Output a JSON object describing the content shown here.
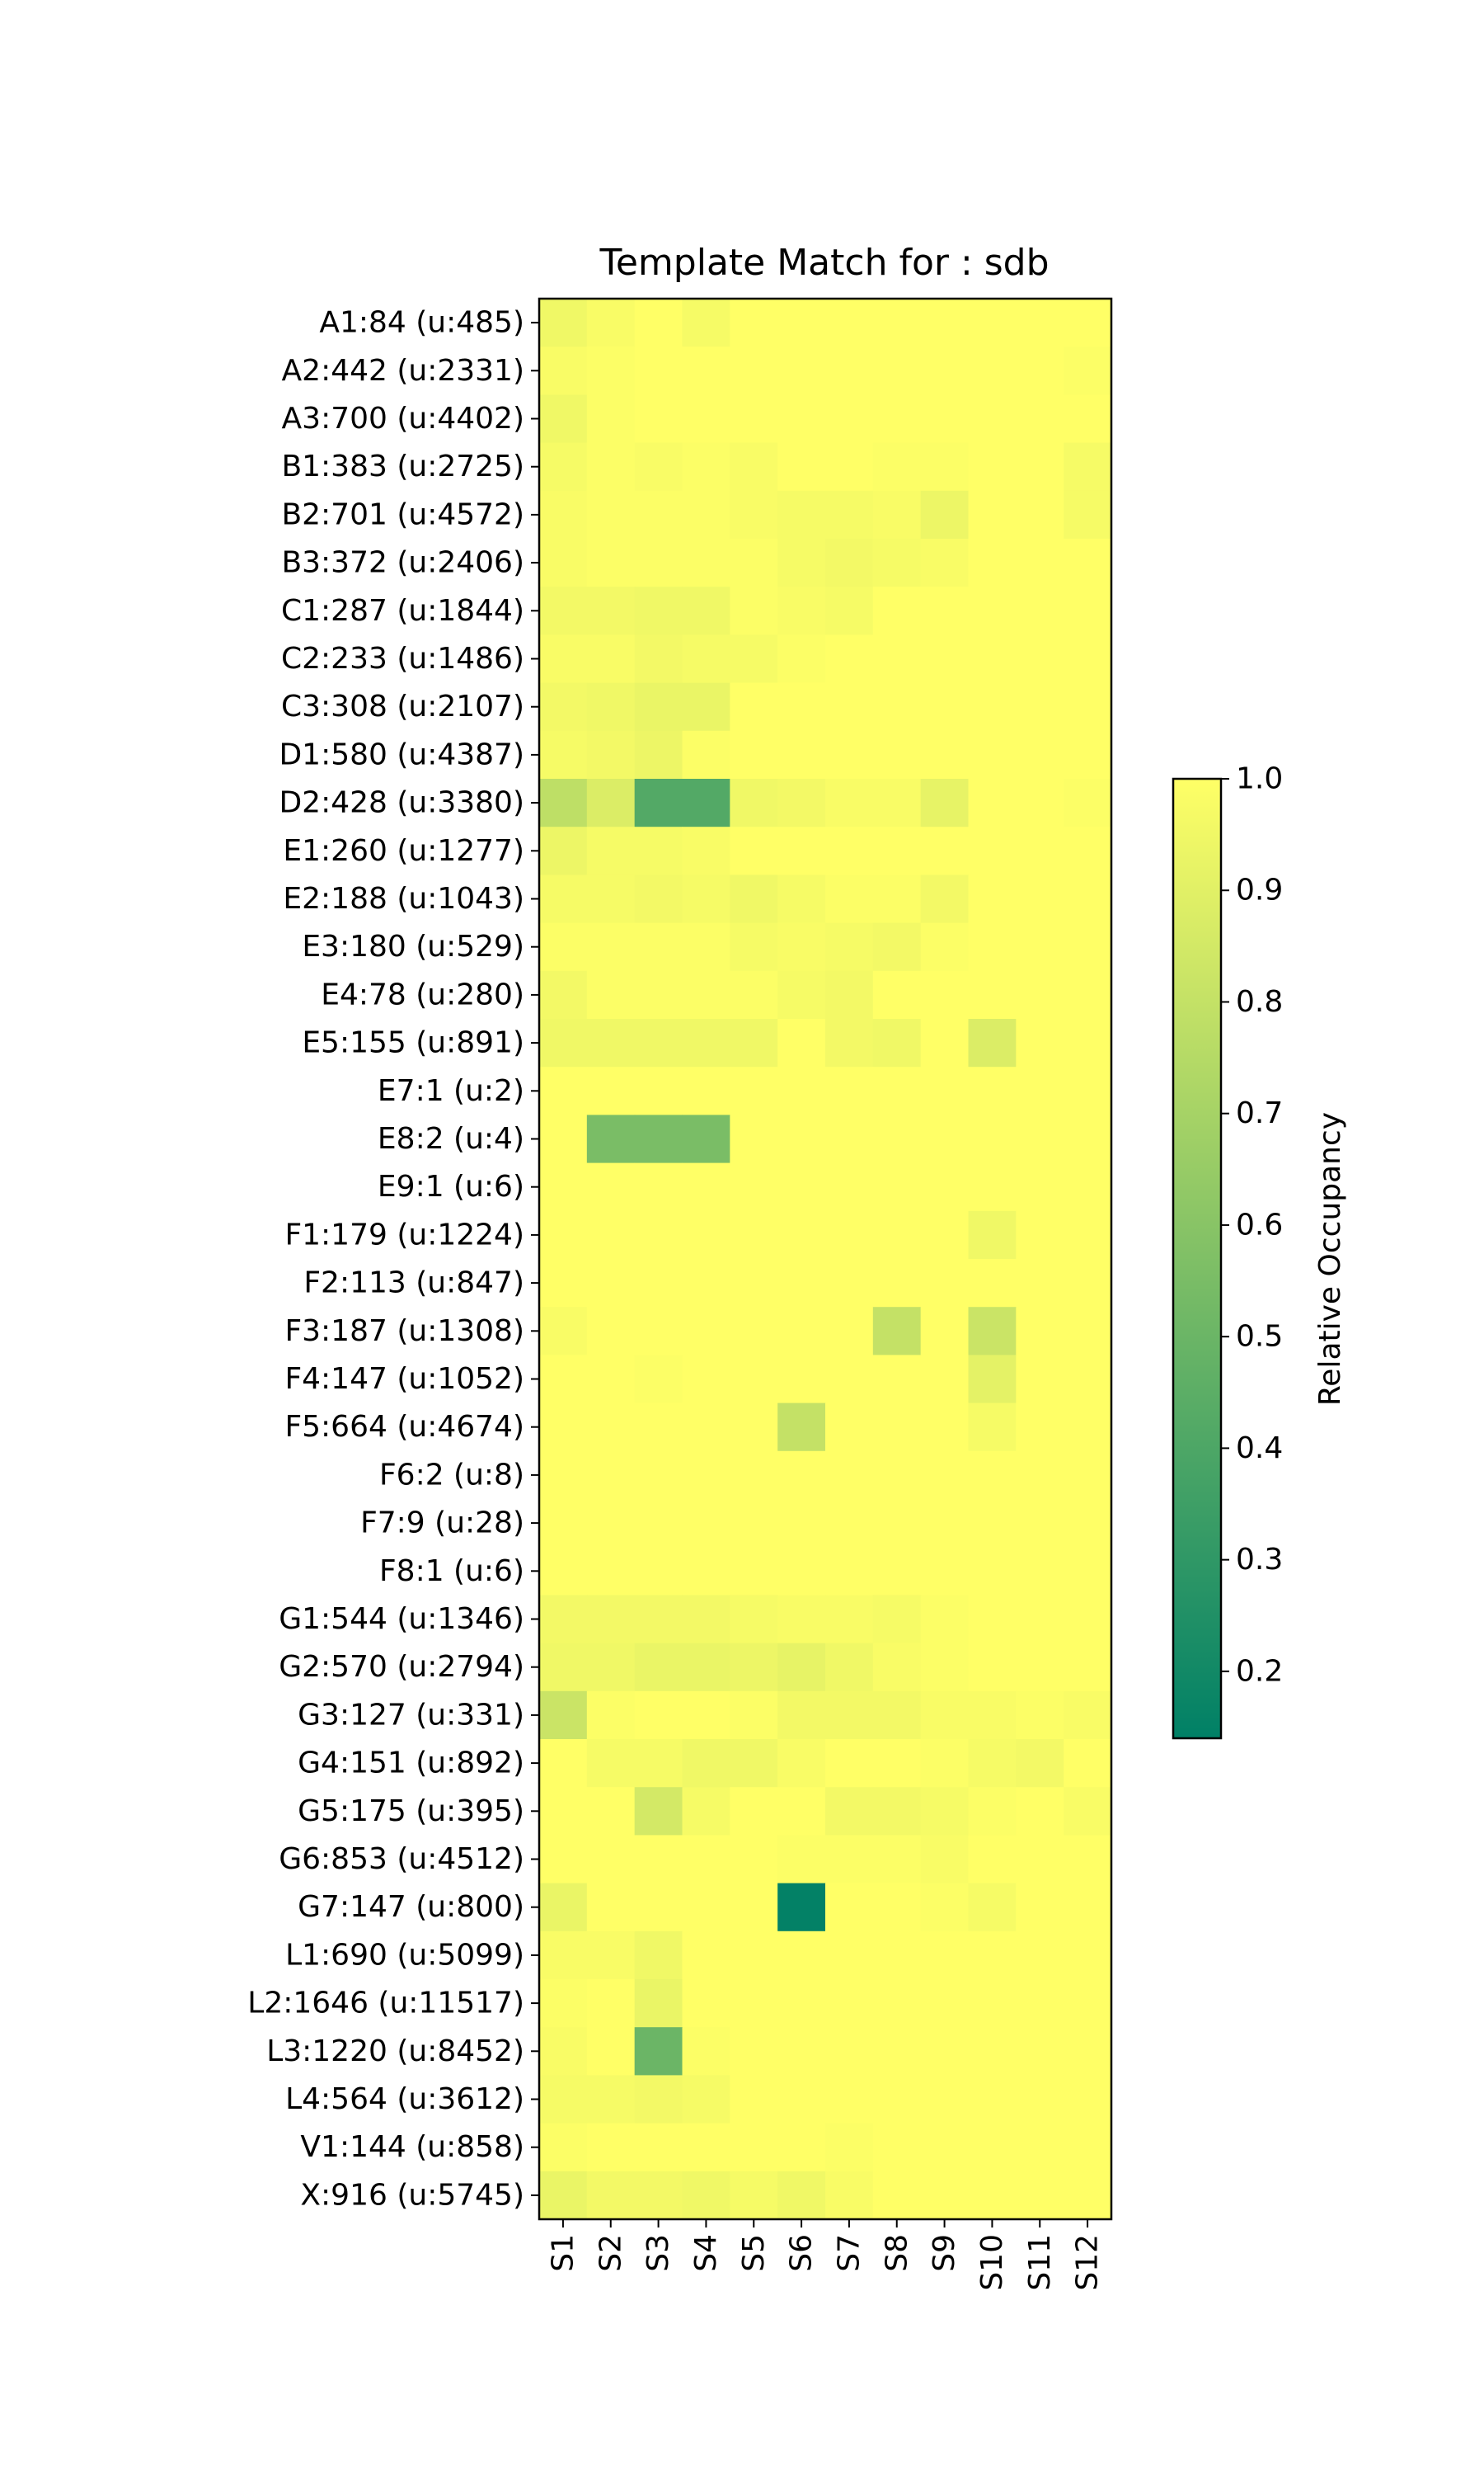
{
  "chart_data": {
    "type": "heatmap",
    "title": "Template Match for : sdb",
    "columns": [
      "S1",
      "S2",
      "S3",
      "S4",
      "S5",
      "S6",
      "S7",
      "S8",
      "S9",
      "S10",
      "S11",
      "S12"
    ],
    "rows": [
      "A1:84 (u:485)",
      "A2:442 (u:2331)",
      "A3:700 (u:4402)",
      "B1:383 (u:2725)",
      "B2:701 (u:4572)",
      "B3:372 (u:2406)",
      "C1:287 (u:1844)",
      "C2:233 (u:1486)",
      "C3:308 (u:2107)",
      "D1:580 (u:4387)",
      "D2:428 (u:3380)",
      "E1:260 (u:1277)",
      "E2:188 (u:1043)",
      "E3:180 (u:529)",
      "E4:78 (u:280)",
      "E5:155 (u:891)",
      "E7:1 (u:2)",
      "E8:2 (u:4)",
      "E9:1 (u:6)",
      "F1:179 (u:1224)",
      "F2:113 (u:847)",
      "F3:187 (u:1308)",
      "F4:147 (u:1052)",
      "F5:664 (u:4674)",
      "F6:2 (u:8)",
      "F7:9 (u:28)",
      "F8:1 (u:6)",
      "G1:544 (u:1346)",
      "G2:570 (u:2794)",
      "G3:127 (u:331)",
      "G4:151 (u:892)",
      "G5:175 (u:395)",
      "G6:853 (u:4512)",
      "G7:147 (u:800)",
      "L1:690 (u:5099)",
      "L2:1646 (u:11517)",
      "L3:1220 (u:8452)",
      "L4:564 (u:3612)",
      "V1:144 (u:858)",
      "X:916 (u:5745)"
    ],
    "values": [
      [
        0.95,
        0.98,
        1.0,
        0.97,
        1.0,
        1.0,
        1.0,
        1.0,
        1.0,
        1.0,
        1.0,
        1.0
      ],
      [
        0.98,
        0.99,
        1.0,
        1.0,
        1.0,
        1.0,
        1.0,
        1.0,
        1.0,
        1.0,
        1.0,
        0.99
      ],
      [
        0.95,
        0.99,
        1.0,
        1.0,
        1.0,
        1.0,
        1.0,
        1.0,
        1.0,
        1.0,
        1.0,
        1.0
      ],
      [
        0.97,
        0.99,
        0.98,
        0.99,
        0.98,
        1.0,
        1.0,
        0.99,
        0.99,
        1.0,
        1.0,
        0.97
      ],
      [
        0.98,
        0.99,
        0.99,
        0.99,
        0.98,
        0.97,
        0.97,
        0.98,
        0.94,
        1.0,
        1.0,
        0.97
      ],
      [
        0.98,
        0.99,
        0.99,
        0.99,
        0.99,
        0.97,
        0.96,
        0.97,
        0.98,
        1.0,
        1.0,
        1.0
      ],
      [
        0.96,
        0.96,
        0.95,
        0.95,
        0.99,
        0.98,
        0.97,
        1.0,
        1.0,
        1.0,
        1.0,
        1.0
      ],
      [
        0.98,
        0.98,
        0.96,
        0.97,
        0.97,
        0.99,
        1.0,
        1.0,
        1.0,
        1.0,
        1.0,
        1.0
      ],
      [
        0.96,
        0.95,
        0.93,
        0.93,
        1.0,
        1.0,
        1.0,
        1.0,
        1.0,
        1.0,
        1.0,
        1.0
      ],
      [
        0.97,
        0.96,
        0.94,
        0.99,
        1.0,
        1.0,
        1.0,
        1.0,
        1.0,
        1.0,
        1.0,
        1.0
      ],
      [
        0.78,
        0.88,
        0.42,
        0.42,
        0.95,
        0.96,
        0.98,
        0.98,
        0.92,
        1.0,
        1.0,
        0.99
      ],
      [
        0.94,
        0.97,
        0.97,
        0.98,
        1.0,
        1.0,
        1.0,
        1.0,
        1.0,
        1.0,
        1.0,
        1.0
      ],
      [
        0.97,
        0.97,
        0.96,
        0.97,
        0.95,
        0.97,
        0.99,
        0.99,
        0.96,
        1.0,
        1.0,
        1.0
      ],
      [
        0.99,
        0.99,
        0.99,
        0.99,
        0.97,
        0.98,
        0.97,
        0.96,
        0.99,
        1.0,
        1.0,
        1.0
      ],
      [
        0.96,
        0.99,
        0.99,
        0.99,
        0.99,
        0.97,
        0.96,
        1.0,
        1.0,
        1.0,
        1.0,
        1.0
      ],
      [
        0.95,
        0.95,
        0.95,
        0.95,
        0.95,
        1.0,
        0.96,
        0.95,
        1.0,
        0.88,
        1.0,
        1.0
      ],
      [
        1.0,
        1.0,
        1.0,
        1.0,
        1.0,
        1.0,
        1.0,
        1.0,
        1.0,
        1.0,
        1.0,
        1.0
      ],
      [
        1.0,
        0.55,
        0.55,
        0.55,
        1.0,
        1.0,
        1.0,
        1.0,
        1.0,
        1.0,
        1.0,
        1.0
      ],
      [
        1.0,
        1.0,
        1.0,
        1.0,
        1.0,
        1.0,
        1.0,
        1.0,
        1.0,
        1.0,
        1.0,
        1.0
      ],
      [
        1.0,
        1.0,
        1.0,
        1.0,
        1.0,
        1.0,
        1.0,
        1.0,
        1.0,
        0.95,
        1.0,
        1.0
      ],
      [
        1.0,
        1.0,
        1.0,
        1.0,
        1.0,
        1.0,
        1.0,
        1.0,
        1.0,
        1.0,
        1.0,
        1.0
      ],
      [
        0.98,
        1.0,
        1.0,
        1.0,
        1.0,
        1.0,
        1.0,
        0.8,
        1.0,
        0.82,
        1.0,
        1.0
      ],
      [
        1.0,
        1.0,
        0.99,
        1.0,
        1.0,
        1.0,
        1.0,
        1.0,
        1.0,
        0.91,
        1.0,
        1.0
      ],
      [
        1.0,
        1.0,
        1.0,
        1.0,
        1.0,
        0.8,
        1.0,
        1.0,
        1.0,
        0.97,
        1.0,
        1.0
      ],
      [
        1.0,
        1.0,
        1.0,
        1.0,
        1.0,
        1.0,
        1.0,
        1.0,
        1.0,
        1.0,
        1.0,
        1.0
      ],
      [
        1.0,
        1.0,
        1.0,
        1.0,
        1.0,
        1.0,
        1.0,
        1.0,
        1.0,
        1.0,
        1.0,
        1.0
      ],
      [
        1.0,
        1.0,
        1.0,
        1.0,
        1.0,
        1.0,
        1.0,
        1.0,
        1.0,
        1.0,
        1.0,
        1.0
      ],
      [
        0.96,
        0.96,
        0.96,
        0.96,
        0.97,
        0.98,
        0.98,
        0.97,
        0.99,
        1.0,
        1.0,
        1.0
      ],
      [
        0.95,
        0.95,
        0.93,
        0.93,
        0.94,
        0.92,
        0.95,
        0.98,
        0.99,
        1.0,
        1.0,
        1.0
      ],
      [
        0.82,
        0.99,
        1.0,
        1.0,
        0.99,
        0.96,
        0.96,
        0.96,
        0.98,
        0.98,
        0.99,
        0.98
      ],
      [
        1.0,
        0.97,
        0.97,
        0.95,
        0.95,
        0.98,
        1.0,
        1.0,
        0.99,
        0.97,
        0.96,
        1.0
      ],
      [
        1.0,
        1.0,
        0.85,
        0.97,
        1.0,
        1.0,
        0.96,
        0.96,
        0.97,
        0.99,
        1.0,
        0.98
      ],
      [
        1.0,
        1.0,
        1.0,
        1.0,
        1.0,
        0.99,
        0.99,
        0.99,
        0.98,
        1.0,
        1.0,
        1.0
      ],
      [
        0.93,
        1.0,
        1.0,
        1.0,
        1.0,
        0.15,
        1.0,
        1.0,
        0.99,
        0.97,
        1.0,
        1.0
      ],
      [
        0.98,
        0.98,
        0.95,
        1.0,
        1.0,
        1.0,
        1.0,
        1.0,
        1.0,
        1.0,
        1.0,
        1.0
      ],
      [
        0.99,
        1.0,
        0.93,
        1.0,
        1.0,
        1.0,
        1.0,
        1.0,
        1.0,
        1.0,
        1.0,
        1.0
      ],
      [
        0.98,
        1.0,
        0.5,
        0.99,
        1.0,
        1.0,
        1.0,
        1.0,
        1.0,
        1.0,
        1.0,
        1.0
      ],
      [
        0.97,
        0.97,
        0.96,
        0.97,
        1.0,
        1.0,
        1.0,
        1.0,
        1.0,
        1.0,
        1.0,
        1.0
      ],
      [
        0.99,
        1.0,
        1.0,
        1.0,
        1.0,
        1.0,
        0.99,
        1.0,
        1.0,
        1.0,
        1.0,
        1.0
      ],
      [
        0.93,
        0.96,
        0.96,
        0.95,
        0.97,
        0.95,
        0.98,
        1.0,
        1.0,
        1.0,
        1.0,
        1.0
      ]
    ],
    "colorbar": {
      "label": "Relative Occupancy",
      "vmin": 0.14,
      "vmax": 1.0,
      "ticks": [
        "1.0",
        "0.9",
        "0.8",
        "0.7",
        "0.6",
        "0.5",
        "0.4",
        "0.3",
        "0.2"
      ],
      "colormap": "summer",
      "color_low": "#008066",
      "color_high": "#ffff66"
    },
    "grid": false
  }
}
